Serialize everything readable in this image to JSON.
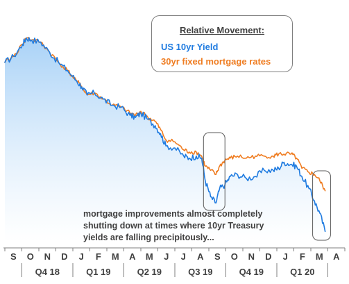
{
  "chart_data": {
    "type": "line",
    "legend": {
      "title": "Relative Movement:",
      "placement": "top-center"
    },
    "x_months": [
      "S",
      "O",
      "N",
      "D",
      "J",
      "F",
      "M",
      "A",
      "M",
      "J",
      "J",
      "A",
      "S",
      "O",
      "N",
      "D",
      "J",
      "F",
      "M",
      "A"
    ],
    "x_quarters": [
      "Q4 18",
      "Q1 19",
      "Q2 19",
      "Q3 19",
      "Q4 19",
      "Q1 20"
    ],
    "series": [
      {
        "name": "US 10yr Yield",
        "color": "#1f7be0",
        "points": [
          [
            0.0,
            88
          ],
          [
            0.5,
            91
          ],
          [
            1.0,
            97
          ],
          [
            1.2,
            100
          ],
          [
            1.5,
            99
          ],
          [
            2.0,
            98
          ],
          [
            2.5,
            93
          ],
          [
            3.0,
            88
          ],
          [
            3.5,
            84
          ],
          [
            4.0,
            79
          ],
          [
            4.3,
            76
          ],
          [
            4.6,
            72
          ],
          [
            5.0,
            73
          ],
          [
            5.5,
            70
          ],
          [
            6.0,
            67
          ],
          [
            6.5,
            66
          ],
          [
            7.0,
            62
          ],
          [
            7.3,
            61
          ],
          [
            7.6,
            63
          ],
          [
            8.0,
            60
          ],
          [
            8.4,
            57
          ],
          [
            8.7,
            53
          ],
          [
            9.0,
            47
          ],
          [
            9.5,
            46
          ],
          [
            10.0,
            42
          ],
          [
            10.3,
            41
          ],
          [
            10.7,
            42
          ],
          [
            11.0,
            41
          ],
          [
            11.2,
            30
          ],
          [
            11.5,
            22
          ],
          [
            11.8,
            19
          ],
          [
            12.0,
            26
          ],
          [
            12.3,
            28
          ],
          [
            12.6,
            32
          ],
          [
            13.0,
            33
          ],
          [
            13.5,
            31
          ],
          [
            14.0,
            32
          ],
          [
            14.5,
            35
          ],
          [
            15.0,
            35
          ],
          [
            15.3,
            36
          ],
          [
            15.6,
            39
          ],
          [
            16.0,
            38
          ],
          [
            16.3,
            37
          ],
          [
            16.6,
            32
          ],
          [
            17.0,
            26
          ],
          [
            17.3,
            20
          ],
          [
            17.6,
            14
          ],
          [
            17.9,
            5
          ]
        ]
      },
      {
        "name": "30yr fixed mortgage rates",
        "color": "#ef7d22",
        "points": [
          [
            0.0,
            88
          ],
          [
            0.5,
            91
          ],
          [
            1.0,
            97
          ],
          [
            1.2,
            100
          ],
          [
            1.5,
            99
          ],
          [
            2.0,
            98
          ],
          [
            2.5,
            93
          ],
          [
            3.0,
            88
          ],
          [
            3.5,
            84
          ],
          [
            4.0,
            79
          ],
          [
            4.3,
            76
          ],
          [
            4.6,
            72
          ],
          [
            5.0,
            73
          ],
          [
            5.5,
            70
          ],
          [
            6.0,
            67
          ],
          [
            6.5,
            66
          ],
          [
            7.0,
            63
          ],
          [
            7.3,
            62
          ],
          [
            7.6,
            64
          ],
          [
            8.0,
            61
          ],
          [
            8.4,
            59
          ],
          [
            8.7,
            55
          ],
          [
            9.0,
            50
          ],
          [
            9.5,
            49
          ],
          [
            10.0,
            45
          ],
          [
            10.3,
            44
          ],
          [
            10.7,
            44
          ],
          [
            11.0,
            42
          ],
          [
            11.2,
            37
          ],
          [
            11.5,
            35
          ],
          [
            11.8,
            33
          ],
          [
            12.0,
            37
          ],
          [
            12.3,
            40
          ],
          [
            12.6,
            41
          ],
          [
            13.0,
            42
          ],
          [
            13.5,
            41
          ],
          [
            14.0,
            42
          ],
          [
            14.5,
            42
          ],
          [
            15.0,
            42
          ],
          [
            15.3,
            43
          ],
          [
            15.6,
            43
          ],
          [
            16.0,
            43
          ],
          [
            16.3,
            41
          ],
          [
            16.6,
            36
          ],
          [
            17.0,
            34
          ],
          [
            17.3,
            33
          ],
          [
            17.6,
            30
          ],
          [
            17.9,
            25
          ]
        ]
      }
    ],
    "highlight_boxes": [
      {
        "x_start": 11.1,
        "x_end": 12.3
      },
      {
        "x_start": 17.2,
        "x_end": 18.2
      }
    ],
    "annotation": "mortgage improvements almost completely shutting down at times where 10yr Treasury yields are falling precipitously...",
    "annotation_lines": [
      "mortgage improvements almost completely",
      "shutting down at times where 10yr Treasury",
      "yields are falling precipitously..."
    ],
    "xlabel": "",
    "ylabel": "",
    "x_range": [
      0,
      19
    ],
    "y_range": [
      0,
      105
    ],
    "grid": false,
    "y_axis_visible": false
  }
}
